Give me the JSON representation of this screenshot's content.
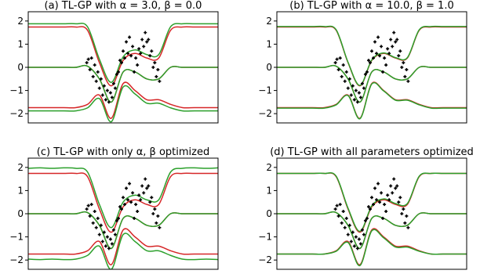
{
  "chart_data": [
    {
      "type": "line",
      "title": "(a) TL-GP with α = 3.0, β = 0.0",
      "xlabel": "",
      "ylabel": "",
      "xlim": [
        -6,
        6
      ],
      "ylim": [
        -2.4,
        2.4
      ],
      "yticks": [
        "2",
        "1",
        "0",
        "−1",
        "−2"
      ],
      "x": [
        -6,
        -5.25,
        -4.5,
        -3.75,
        -3.0,
        -2.25,
        -1.5,
        -0.75,
        0.0,
        0.75,
        1.5,
        2.25,
        3.0,
        3.75,
        4.5,
        5.25,
        6.0
      ],
      "series": [
        {
          "color": "#d62728",
          "values": [
            1.74,
            1.74,
            1.74,
            1.74,
            1.74,
            1.6,
            0.2,
            -0.8,
            0.3,
            0.6,
            0.4,
            0.4,
            1.6,
            1.74,
            1.74,
            1.74,
            1.74
          ]
        },
        {
          "color": "#d62728",
          "values": [
            0.0,
            0.0,
            0.0,
            0.0,
            0.0,
            0.05,
            -0.5,
            -1.5,
            -0.2,
            -0.2,
            -0.5,
            -0.5,
            0.0,
            0.0,
            0.0,
            0.0,
            0.0
          ]
        },
        {
          "color": "#d62728",
          "values": [
            -1.74,
            -1.74,
            -1.74,
            -1.74,
            -1.74,
            -1.6,
            -1.2,
            -2.2,
            -0.7,
            -1.0,
            -1.4,
            -1.4,
            -1.6,
            -1.74,
            -1.74,
            -1.74,
            -1.74
          ]
        },
        {
          "color": "#2ca02c",
          "values": [
            1.88,
            1.88,
            1.88,
            1.88,
            1.88,
            1.75,
            0.35,
            -0.65,
            0.45,
            0.75,
            0.55,
            0.55,
            1.75,
            1.88,
            1.88,
            1.88,
            1.88
          ]
        },
        {
          "color": "#2ca02c",
          "values": [
            0.0,
            0.0,
            0.0,
            0.0,
            0.0,
            0.05,
            -0.5,
            -1.5,
            -0.2,
            -0.2,
            -0.5,
            -0.5,
            0.0,
            0.0,
            0.0,
            0.0,
            0.0
          ]
        },
        {
          "color": "#2ca02c",
          "values": [
            -1.88,
            -1.88,
            -1.88,
            -1.88,
            -1.88,
            -1.75,
            -1.35,
            -2.35,
            -0.85,
            -1.15,
            -1.55,
            -1.55,
            -1.75,
            -1.88,
            -1.88,
            -1.88,
            -1.88
          ]
        }
      ]
    },
    {
      "type": "line",
      "title": "(b) TL-GP with α = 10.0, β = 1.0",
      "xlabel": "",
      "ylabel": "",
      "xlim": [
        -6,
        6
      ],
      "ylim": [
        -2.4,
        2.4
      ],
      "yticks": [
        "2",
        "1",
        "0",
        "−1",
        "−2"
      ],
      "x": [
        -6,
        -5.25,
        -4.5,
        -3.75,
        -3.0,
        -2.25,
        -1.5,
        -0.75,
        0.0,
        0.75,
        1.5,
        2.25,
        3.0,
        3.75,
        4.5,
        5.25,
        6.0
      ],
      "series": [
        {
          "color": "#d62728",
          "values": [
            1.74,
            1.74,
            1.74,
            1.74,
            1.74,
            1.6,
            0.2,
            -0.8,
            0.3,
            0.6,
            0.4,
            0.4,
            1.6,
            1.74,
            1.74,
            1.74,
            1.74
          ]
        },
        {
          "color": "#d62728",
          "values": [
            0.0,
            0.0,
            0.0,
            0.0,
            0.0,
            0.05,
            -0.5,
            -1.5,
            -0.2,
            -0.2,
            -0.5,
            -0.5,
            0.0,
            0.0,
            0.0,
            0.0,
            0.0
          ]
        },
        {
          "color": "#d62728",
          "values": [
            -1.74,
            -1.74,
            -1.74,
            -1.74,
            -1.74,
            -1.6,
            -1.2,
            -2.2,
            -0.7,
            -1.0,
            -1.4,
            -1.4,
            -1.6,
            -1.74,
            -1.74,
            -1.74,
            -1.74
          ]
        },
        {
          "color": "#2ca02c",
          "values": [
            1.76,
            1.76,
            1.76,
            1.76,
            1.76,
            1.62,
            0.22,
            -0.78,
            0.32,
            0.62,
            0.42,
            0.42,
            1.62,
            1.76,
            1.76,
            1.76,
            1.76
          ]
        },
        {
          "color": "#2ca02c",
          "values": [
            0.0,
            0.0,
            0.0,
            0.0,
            0.0,
            0.05,
            -0.5,
            -1.5,
            -0.2,
            -0.2,
            -0.5,
            -0.5,
            0.0,
            0.0,
            0.0,
            0.0,
            0.0
          ]
        },
        {
          "color": "#2ca02c",
          "values": [
            -1.76,
            -1.76,
            -1.76,
            -1.76,
            -1.76,
            -1.62,
            -1.22,
            -2.22,
            -0.72,
            -1.02,
            -1.42,
            -1.42,
            -1.62,
            -1.76,
            -1.76,
            -1.76,
            -1.76
          ]
        }
      ]
    },
    {
      "type": "line",
      "title": "(c) TL-GP with only α, β optimized",
      "xlabel": "",
      "ylabel": "",
      "xlim": [
        -6,
        6
      ],
      "ylim": [
        -2.4,
        2.4
      ],
      "yticks": [
        "2",
        "1",
        "0",
        "−1",
        "−2"
      ],
      "x": [
        -6,
        -5.25,
        -4.5,
        -3.75,
        -3.0,
        -2.25,
        -1.5,
        -0.75,
        0.0,
        0.75,
        1.5,
        2.25,
        3.0,
        3.75,
        4.5,
        5.25,
        6.0
      ],
      "series": [
        {
          "color": "#d62728",
          "values": [
            1.74,
            1.74,
            1.74,
            1.74,
            1.74,
            1.6,
            0.2,
            -0.8,
            0.3,
            0.6,
            0.4,
            0.4,
            1.6,
            1.74,
            1.74,
            1.74,
            1.74
          ]
        },
        {
          "color": "#d62728",
          "values": [
            0.0,
            0.0,
            0.0,
            0.0,
            0.0,
            0.05,
            -0.5,
            -1.5,
            -0.2,
            -0.2,
            -0.5,
            -0.5,
            0.0,
            0.0,
            0.0,
            0.0,
            0.0
          ]
        },
        {
          "color": "#d62728",
          "values": [
            -1.74,
            -1.74,
            -1.74,
            -1.74,
            -1.74,
            -1.6,
            -1.2,
            -2.2,
            -0.7,
            -1.0,
            -1.4,
            -1.4,
            -1.6,
            -1.74,
            -1.74,
            -1.74,
            -1.74
          ]
        },
        {
          "color": "#2ca02c",
          "values": [
            1.96,
            1.98,
            1.96,
            1.98,
            1.96,
            1.8,
            0.4,
            -0.6,
            0.5,
            0.8,
            0.6,
            0.6,
            1.8,
            1.96,
            1.98,
            1.96,
            1.98
          ]
        },
        {
          "color": "#2ca02c",
          "values": [
            0.0,
            0.0,
            0.0,
            0.0,
            0.0,
            0.05,
            -0.5,
            -1.5,
            -0.2,
            -0.2,
            -0.5,
            -0.5,
            0.0,
            0.0,
            0.0,
            0.0,
            0.0
          ]
        },
        {
          "color": "#2ca02c",
          "values": [
            -1.96,
            -1.98,
            -1.96,
            -1.98,
            -1.96,
            -1.8,
            -1.4,
            -2.4,
            -0.9,
            -1.2,
            -1.6,
            -1.6,
            -1.8,
            -1.96,
            -1.98,
            -1.96,
            -1.98
          ]
        }
      ]
    },
    {
      "type": "line",
      "title": "(d) TL-GP with all parameters optimized",
      "xlabel": "",
      "ylabel": "",
      "xlim": [
        -6,
        6
      ],
      "ylim": [
        -2.4,
        2.4
      ],
      "yticks": [
        "2",
        "1",
        "0",
        "−1",
        "−2"
      ],
      "x": [
        -6,
        -5.25,
        -4.5,
        -3.75,
        -3.0,
        -2.25,
        -1.5,
        -0.75,
        0.0,
        0.75,
        1.5,
        2.25,
        3.0,
        3.75,
        4.5,
        5.25,
        6.0
      ],
      "series": [
        {
          "color": "#d62728",
          "values": [
            1.74,
            1.74,
            1.74,
            1.74,
            1.74,
            1.6,
            0.2,
            -0.8,
            0.3,
            0.6,
            0.4,
            0.4,
            1.6,
            1.74,
            1.74,
            1.74,
            1.74
          ]
        },
        {
          "color": "#d62728",
          "values": [
            0.0,
            0.0,
            0.0,
            0.0,
            0.0,
            0.05,
            -0.5,
            -1.5,
            -0.2,
            -0.2,
            -0.5,
            -0.5,
            0.0,
            0.0,
            0.0,
            0.0,
            0.0
          ]
        },
        {
          "color": "#d62728",
          "values": [
            -1.74,
            -1.74,
            -1.74,
            -1.74,
            -1.74,
            -1.6,
            -1.2,
            -2.2,
            -0.7,
            -1.0,
            -1.4,
            -1.4,
            -1.6,
            -1.74,
            -1.74,
            -1.74,
            -1.74
          ]
        },
        {
          "color": "#2ca02c",
          "values": [
            1.74,
            1.74,
            1.74,
            1.74,
            1.74,
            1.62,
            0.24,
            -0.76,
            0.34,
            0.64,
            0.44,
            0.44,
            1.62,
            1.74,
            1.74,
            1.74,
            1.74
          ]
        },
        {
          "color": "#2ca02c",
          "values": [
            0.0,
            0.0,
            0.0,
            0.0,
            0.0,
            0.05,
            -0.5,
            -1.5,
            -0.2,
            -0.2,
            -0.5,
            -0.5,
            0.0,
            0.0,
            0.0,
            0.0,
            0.0
          ]
        },
        {
          "color": "#2ca02c",
          "values": [
            -1.74,
            -1.74,
            -1.74,
            -1.74,
            -1.74,
            -1.62,
            -1.24,
            -2.24,
            -0.74,
            -1.04,
            -1.44,
            -1.44,
            -1.62,
            -1.74,
            -1.74,
            -1.74,
            -1.74
          ]
        }
      ]
    }
  ],
  "observations": {
    "color": "#000000",
    "x": [
      -2.3,
      -2.2,
      -2.1,
      -2.0,
      -1.9,
      -1.8,
      -1.7,
      -1.6,
      -1.5,
      -1.4,
      -1.3,
      -1.2,
      -1.1,
      -1.0,
      -0.9,
      -0.8,
      -0.7,
      -0.6,
      -0.5,
      -0.4,
      -0.3,
      -0.2,
      -0.1,
      0.0,
      0.1,
      0.2,
      0.3,
      0.4,
      0.5,
      0.6,
      0.7,
      0.8,
      0.9,
      1.0,
      1.1,
      1.2,
      1.3,
      1.4,
      1.5,
      1.6,
      1.7,
      1.8,
      1.9,
      2.0,
      2.1,
      2.2,
      2.3
    ],
    "y": [
      0.2,
      0.35,
      -0.1,
      0.4,
      -0.4,
      0.1,
      -0.6,
      -0.2,
      -0.9,
      -0.5,
      -1.2,
      -0.8,
      -1.4,
      -1.0,
      -1.5,
      -1.1,
      -1.3,
      -0.7,
      -0.9,
      -0.3,
      -0.2,
      0.3,
      0.2,
      0.7,
      0.4,
      1.1,
      0.6,
      1.3,
      0.5,
      0.9,
      -0.2,
      0.4,
      0.1,
      0.8,
      0.6,
      1.2,
      0.9,
      1.5,
      1.1,
      1.2,
      0.5,
      0.7,
      0.0,
      0.2,
      -0.4,
      -0.1,
      -0.6
    ]
  }
}
